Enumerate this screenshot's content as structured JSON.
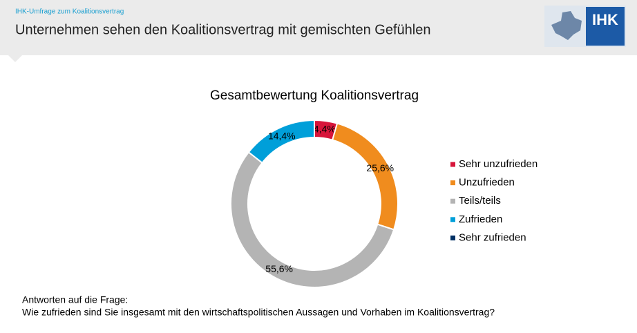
{
  "header": {
    "kicker": "IHK-Umfrage zum Koalitionsvertrag",
    "title": "Unternehmen sehen den Koalitionsvertrag mit gemischten Gefühlen",
    "logo_text": "IHK"
  },
  "chart_data": {
    "type": "donut",
    "title": "Gesamtbewertung Koalitionsvertrag",
    "categories": [
      "Sehr unzufrieden",
      "Unzufrieden",
      "Teils/teils",
      "Zufrieden",
      "Sehr zufrieden"
    ],
    "values": [
      4.4,
      25.6,
      55.6,
      14.4,
      0
    ],
    "value_labels": [
      "4,4%",
      "25,6%",
      "55,6%",
      "14,4%",
      null
    ],
    "colors": [
      "#d7153a",
      "#f08c1e",
      "#b4b4b4",
      "#009fd9",
      "#003064"
    ],
    "legend": "right"
  },
  "footnote": {
    "intro": "Antworten auf die Frage:",
    "question": "Wie zufrieden sind Sie insgesamt mit den wirtschaftspolitischen Aussagen und Vorhaben im Koalitionsvertrag?"
  }
}
